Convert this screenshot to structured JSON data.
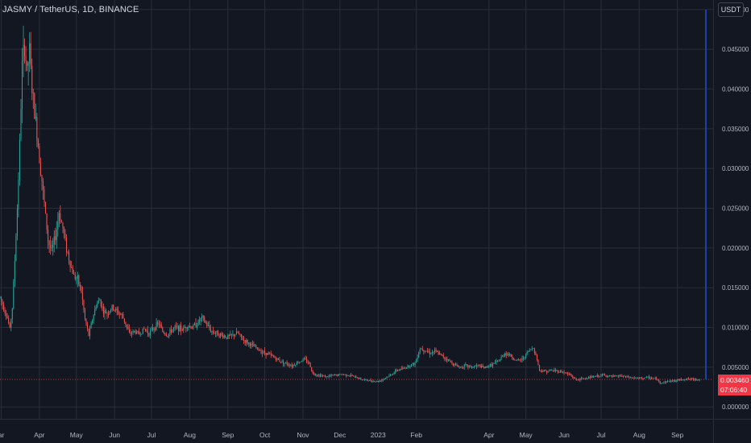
{
  "symbol_title": "JASMY / TetherUS, 1D, BINANCE",
  "currency_button": "USDT",
  "last_price": "0.003460",
  "countdown": "07:06:40",
  "colors": {
    "background": "#131722",
    "grid": "#2a2e39",
    "up": "#26a69a",
    "down": "#ef5350",
    "price_line": "#f23645",
    "marker_line": "#1e3ea8",
    "text": "#b2b5be"
  },
  "chart_data": {
    "type": "candlestick",
    "title": "JASMY / TetherUS, 1D, BINANCE",
    "y_axis": {
      "ticks": [
        "0.050000",
        "0.045000",
        "0.040000",
        "0.035000",
        "0.030000",
        "0.025000",
        "0.020000",
        "0.015000",
        "0.010000",
        "0.005000",
        "0.000000"
      ],
      "range": [
        -0.0015,
        0.0512
      ],
      "position": "right"
    },
    "x_axis": {
      "labels": [
        {
          "label": "ar",
          "date": "2022-03-01"
        },
        {
          "label": "Apr",
          "date": "2022-04-01"
        },
        {
          "label": "May",
          "date": "2022-05-01"
        },
        {
          "label": "Jun",
          "date": "2022-06-01"
        },
        {
          "label": "Jul",
          "date": "2022-07-01"
        },
        {
          "label": "Aug",
          "date": "2022-08-01"
        },
        {
          "label": "Sep",
          "date": "2022-09-01"
        },
        {
          "label": "Oct",
          "date": "2022-10-01"
        },
        {
          "label": "Nov",
          "date": "2022-11-01"
        },
        {
          "label": "Dec",
          "date": "2022-12-01"
        },
        {
          "label": "2023",
          "date": "2023-01-01"
        },
        {
          "label": "Feb",
          "date": "2023-02-01"
        },
        {
          "label": "Apr",
          "date": "2023-04-01"
        },
        {
          "label": "May",
          "date": "2023-05-01"
        },
        {
          "label": "Jun",
          "date": "2023-06-01"
        },
        {
          "label": "Jul",
          "date": "2023-07-01"
        },
        {
          "label": "Aug",
          "date": "2023-08-01"
        },
        {
          "label": "Sep",
          "date": "2023-09-01"
        }
      ],
      "range": [
        "2022-02-28",
        "2023-09-30"
      ]
    },
    "last_price": 0.00346,
    "series": [
      {
        "values": [
          [
            "2022-02-28",
            0.0138
          ],
          [
            "2022-03-03",
            0.0125
          ],
          [
            "2022-03-06",
            0.0112
          ],
          [
            "2022-03-08",
            0.0098
          ],
          [
            "2022-03-10",
            0.0125
          ],
          [
            "2022-03-12",
            0.0185
          ],
          [
            "2022-03-14",
            0.025
          ],
          [
            "2022-03-16",
            0.033
          ],
          [
            "2022-03-18",
            0.043
          ],
          [
            "2022-03-20",
            0.0455
          ],
          [
            "2022-03-22",
            0.042
          ],
          [
            "2022-03-24",
            0.0448
          ],
          [
            "2022-03-26",
            0.04
          ],
          [
            "2022-03-28",
            0.037
          ],
          [
            "2022-03-30",
            0.0345
          ],
          [
            "2022-04-02",
            0.03
          ],
          [
            "2022-04-05",
            0.0255
          ],
          [
            "2022-04-08",
            0.021
          ],
          [
            "2022-04-11",
            0.0195
          ],
          [
            "2022-04-14",
            0.0215
          ],
          [
            "2022-04-17",
            0.0245
          ],
          [
            "2022-04-20",
            0.0225
          ],
          [
            "2022-04-23",
            0.02
          ],
          [
            "2022-04-26",
            0.018
          ],
          [
            "2022-04-29",
            0.0165
          ],
          [
            "2022-05-02",
            0.016
          ],
          [
            "2022-05-05",
            0.0145
          ],
          [
            "2022-05-08",
            0.011
          ],
          [
            "2022-05-11",
            0.009
          ],
          [
            "2022-05-14",
            0.011
          ],
          [
            "2022-05-17",
            0.0128
          ],
          [
            "2022-05-20",
            0.0135
          ],
          [
            "2022-05-23",
            0.012
          ],
          [
            "2022-05-26",
            0.0118
          ],
          [
            "2022-05-30",
            0.0125
          ],
          [
            "2022-06-03",
            0.012
          ],
          [
            "2022-06-07",
            0.0115
          ],
          [
            "2022-06-10",
            0.0105
          ],
          [
            "2022-06-13",
            0.0092
          ],
          [
            "2022-06-17",
            0.0095
          ],
          [
            "2022-06-21",
            0.0092
          ],
          [
            "2022-06-25",
            0.0098
          ],
          [
            "2022-06-29",
            0.0093
          ],
          [
            "2022-07-03",
            0.01
          ],
          [
            "2022-07-07",
            0.0105
          ],
          [
            "2022-07-10",
            0.0095
          ],
          [
            "2022-07-14",
            0.009
          ],
          [
            "2022-07-18",
            0.0098
          ],
          [
            "2022-07-22",
            0.01
          ],
          [
            "2022-07-26",
            0.0097
          ],
          [
            "2022-07-30",
            0.0103
          ],
          [
            "2022-08-03",
            0.01
          ],
          [
            "2022-08-07",
            0.0105
          ],
          [
            "2022-08-11",
            0.0112
          ],
          [
            "2022-08-15",
            0.0103
          ],
          [
            "2022-08-19",
            0.0095
          ],
          [
            "2022-08-23",
            0.0093
          ],
          [
            "2022-08-27",
            0.009
          ],
          [
            "2022-08-31",
            0.0088
          ],
          [
            "2022-09-05",
            0.009
          ],
          [
            "2022-09-09",
            0.0093
          ],
          [
            "2022-09-13",
            0.0085
          ],
          [
            "2022-09-18",
            0.008
          ],
          [
            "2022-09-23",
            0.0075
          ],
          [
            "2022-09-28",
            0.007
          ],
          [
            "2022-10-03",
            0.0067
          ],
          [
            "2022-10-08",
            0.0063
          ],
          [
            "2022-10-13",
            0.0058
          ],
          [
            "2022-10-18",
            0.0055
          ],
          [
            "2022-10-23",
            0.0052
          ],
          [
            "2022-10-28",
            0.0056
          ],
          [
            "2022-11-02",
            0.006
          ],
          [
            "2022-11-06",
            0.0055
          ],
          [
            "2022-11-09",
            0.0042
          ],
          [
            "2022-11-14",
            0.004
          ],
          [
            "2022-11-20",
            0.0038
          ],
          [
            "2022-11-27",
            0.004
          ],
          [
            "2022-12-04",
            0.0041
          ],
          [
            "2022-12-11",
            0.0039
          ],
          [
            "2022-12-18",
            0.0035
          ],
          [
            "2022-12-25",
            0.0033
          ],
          [
            "2023-01-01",
            0.0032
          ],
          [
            "2023-01-06",
            0.0036
          ],
          [
            "2023-01-11",
            0.004
          ],
          [
            "2023-01-16",
            0.0046
          ],
          [
            "2023-01-21",
            0.0048
          ],
          [
            "2023-01-26",
            0.0052
          ],
          [
            "2023-01-31",
            0.0055
          ],
          [
            "2023-02-04",
            0.0074
          ],
          [
            "2023-02-08",
            0.0072
          ],
          [
            "2023-02-12",
            0.0068
          ],
          [
            "2023-02-16",
            0.007
          ],
          [
            "2023-02-21",
            0.0065
          ],
          [
            "2023-02-26",
            0.006
          ],
          [
            "2023-03-03",
            0.0054
          ],
          [
            "2023-03-08",
            0.005
          ],
          [
            "2023-03-13",
            0.0052
          ],
          [
            "2023-03-18",
            0.005
          ],
          [
            "2023-03-23",
            0.0052
          ],
          [
            "2023-03-28",
            0.0049
          ],
          [
            "2023-04-03",
            0.0053
          ],
          [
            "2023-04-09",
            0.0058
          ],
          [
            "2023-04-14",
            0.0068
          ],
          [
            "2023-04-18",
            0.0065
          ],
          [
            "2023-04-23",
            0.0058
          ],
          [
            "2023-04-28",
            0.006
          ],
          [
            "2023-05-03",
            0.007
          ],
          [
            "2023-05-07",
            0.0075
          ],
          [
            "2023-05-10",
            0.006
          ],
          [
            "2023-05-12",
            0.0046
          ],
          [
            "2023-05-17",
            0.0045
          ],
          [
            "2023-05-24",
            0.0046
          ],
          [
            "2023-05-31",
            0.0044
          ],
          [
            "2023-06-06",
            0.004
          ],
          [
            "2023-06-11",
            0.0034
          ],
          [
            "2023-06-18",
            0.0036
          ],
          [
            "2023-06-25",
            0.0038
          ],
          [
            "2023-07-03",
            0.004
          ],
          [
            "2023-07-10",
            0.0038
          ],
          [
            "2023-07-17",
            0.0039
          ],
          [
            "2023-07-24",
            0.0037
          ],
          [
            "2023-08-01",
            0.0036
          ],
          [
            "2023-08-08",
            0.0037
          ],
          [
            "2023-08-15",
            0.0035
          ],
          [
            "2023-08-18",
            0.003
          ],
          [
            "2023-08-23",
            0.0032
          ],
          [
            "2023-08-30",
            0.0033
          ],
          [
            "2023-09-06",
            0.0035
          ],
          [
            "2023-09-13",
            0.0035
          ],
          [
            "2023-09-19",
            0.00346
          ]
        ]
      }
    ],
    "grid": true
  }
}
